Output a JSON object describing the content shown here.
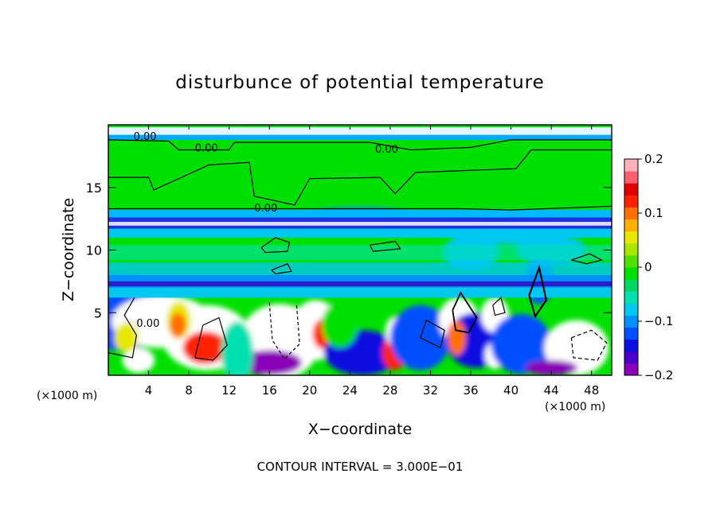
{
  "chart_data": {
    "type": "heatmap",
    "title": "disturbunce of potential temperature",
    "xlabel": "X−coordinate",
    "ylabel": "Z−coordinate",
    "x_unit_left": "(×1000 m)",
    "x_unit_right": "(×1000 m)",
    "footer": "CONTOUR INTERVAL = 3.000E−01",
    "xlim": [
      0,
      50
    ],
    "ylim": [
      0,
      20
    ],
    "x_ticks": [
      4,
      8,
      12,
      16,
      20,
      24,
      28,
      32,
      36,
      40,
      44,
      48
    ],
    "y_ticks": [
      5,
      10,
      15
    ],
    "colorbar": {
      "range": [
        -0.2,
        0.2
      ],
      "ticks": [
        {
          "value": 0.2,
          "label": "0.2"
        },
        {
          "value": 0.1,
          "label": "0.1"
        },
        {
          "value": 0,
          "label": "0"
        },
        {
          "value": -0.1,
          "label": "−0.1"
        },
        {
          "value": -0.2,
          "label": "−0.2"
        }
      ],
      "colors": [
        "#8a00b8",
        "#4a00c8",
        "#0a10e0",
        "#0050ff",
        "#0090ff",
        "#00c8f0",
        "#00e0b0",
        "#00d860",
        "#00e000",
        "#50e000",
        "#a8e800",
        "#e8e800",
        "#ffb000",
        "#ff7000",
        "#ff2000",
        "#e00000",
        "#ff6070",
        "#ffb0b8"
      ]
    },
    "contour_labels": [
      {
        "x": 2.5,
        "y": 19.1,
        "text": "0.00"
      },
      {
        "x": 8.6,
        "y": 18.2,
        "text": "0.00"
      },
      {
        "x": 14.5,
        "y": 13.4,
        "text": "0.00"
      },
      {
        "x": 26.5,
        "y": 18.1,
        "text": "0.00"
      },
      {
        "x": 2.8,
        "y": 4.2,
        "text": "0.00"
      }
    ],
    "grid": false
  }
}
